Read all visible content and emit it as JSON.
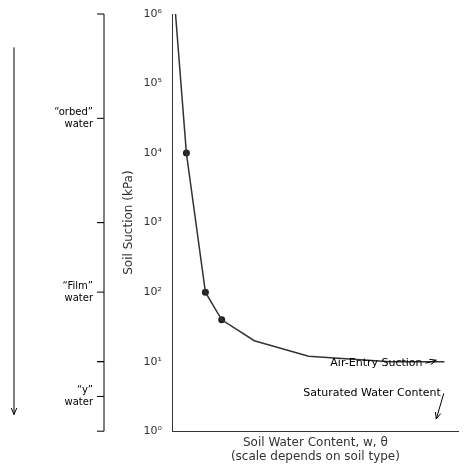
{
  "chart_data": {
    "type": "line",
    "xlabel": "Soil Water Content, w, θ\n(scale depends on soil type)",
    "ylabel": "Soil Suction (kPa)",
    "series": [
      {
        "x": [
          0.01,
          0.05,
          0.12,
          0.18,
          0.3,
          0.5,
          0.8,
          1.0
        ],
        "values": [
          1000000,
          10000,
          100,
          40,
          20,
          12,
          10,
          10
        ],
        "color": "#333333",
        "marker": "none",
        "line_style": "solid"
      },
      {
        "x": [
          0.05,
          0.12,
          0.18
        ],
        "values": [
          10000,
          100,
          40
        ],
        "color": "#222222",
        "marker": "circle",
        "line_style": "none"
      }
    ],
    "xlim": [
      0,
      1.05
    ],
    "ylim": [
      1,
      1000000
    ],
    "yticks": [
      {
        "value": 1,
        "label": "10⁰"
      },
      {
        "value": 10,
        "label": "10¹"
      },
      {
        "value": 100,
        "label": "10²"
      },
      {
        "value": 1000,
        "label": "10³"
      },
      {
        "value": 10000,
        "label": "10⁴"
      },
      {
        "value": 100000,
        "label": "10⁵"
      },
      {
        "value": 1000000,
        "label": "10⁶"
      }
    ],
    "log": "y",
    "grid": false,
    "tick_labels": "y",
    "annotations": [
      {
        "text": "Air-Entry Suction",
        "x": 0.97,
        "y": 10.5,
        "text_x": 0.58,
        "text_y": 9.5
      },
      {
        "text": "Saturated Water Content",
        "x": 0.97,
        "y": 1.5,
        "text_x": 0.48,
        "text_y": 3.5
      }
    ],
    "zones": [
      {
        "y_top": 1000000,
        "y_bot": 1000,
        "label": "“orbed”\nwater"
      },
      {
        "y_top": 1000,
        "y_bot": 10,
        "label": "“Film”\nwater"
      },
      {
        "y_top": 10,
        "y_bot": 1,
        "label": "“y”\nwater"
      }
    ]
  }
}
